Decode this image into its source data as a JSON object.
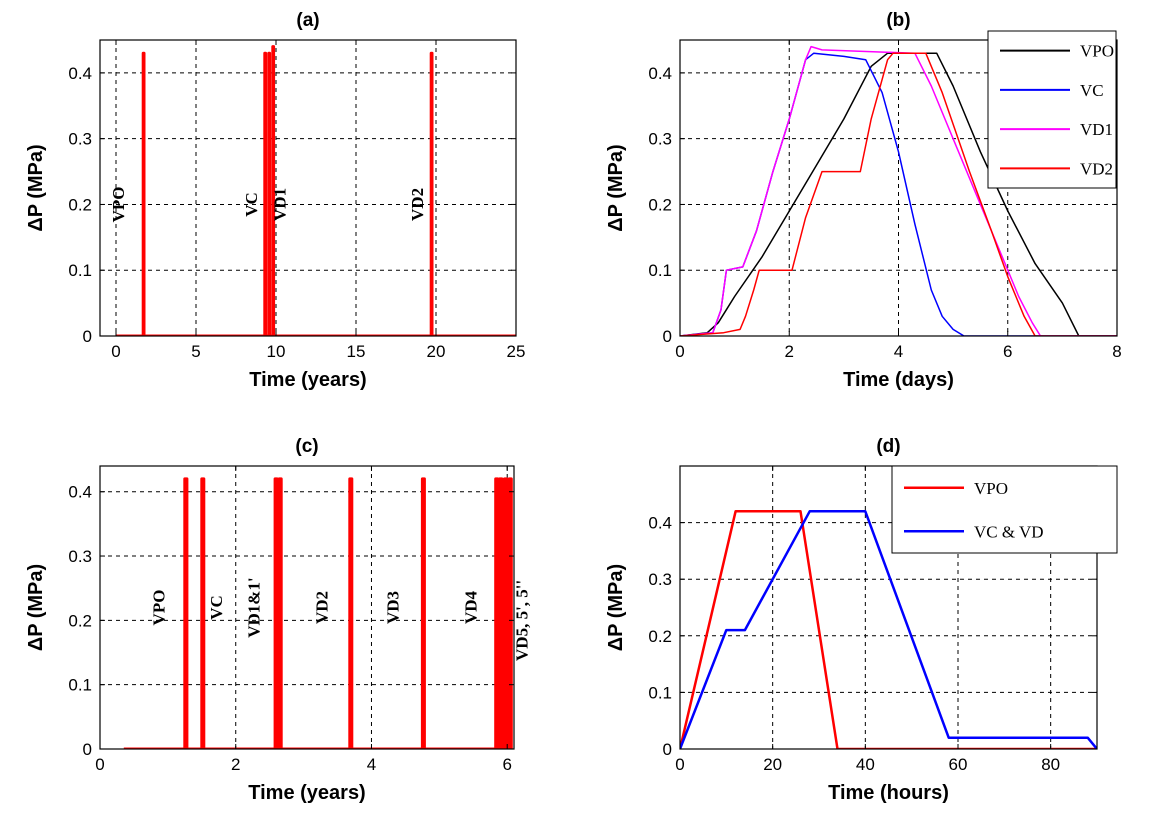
{
  "chart_data": [
    {
      "id": "a",
      "type": "line",
      "title": "(a)",
      "xlabel": "Time (years)",
      "ylabel": "ΔP (MPa)",
      "xlim": [
        -1,
        25
      ],
      "ylim": [
        0,
        0.45
      ],
      "xticks": [
        0,
        5,
        10,
        15,
        20,
        25
      ],
      "yticks": [
        0,
        0.1,
        0.2,
        0.3,
        0.4
      ],
      "grid": true,
      "series": [
        {
          "color": "#ff0000",
          "width": 3,
          "points": [
            [
              0,
              0
            ],
            [
              1.7,
              0
            ],
            [
              1.7,
              0.43
            ],
            [
              1.75,
              0.43
            ],
            [
              1.75,
              0
            ],
            [
              9.3,
              0
            ],
            [
              9.3,
              0.43
            ],
            [
              9.35,
              0.43
            ],
            [
              9.35,
              0
            ],
            [
              9.55,
              0
            ],
            [
              9.55,
              0.43
            ],
            [
              9.6,
              0.43
            ],
            [
              9.6,
              0
            ],
            [
              9.8,
              0
            ],
            [
              9.8,
              0.44
            ],
            [
              9.85,
              0.44
            ],
            [
              9.85,
              0
            ],
            [
              19.7,
              0
            ],
            [
              19.7,
              0.43
            ],
            [
              19.75,
              0.43
            ],
            [
              19.75,
              0
            ],
            [
              25,
              0
            ]
          ]
        }
      ],
      "annotations": [
        {
          "text": "VPO",
          "x": 0.5,
          "y": 0.2
        },
        {
          "text": "VC",
          "x": 8.8,
          "y": 0.2
        },
        {
          "text": "VD1",
          "x": 10.6,
          "y": 0.2
        },
        {
          "text": "VD2",
          "x": 19.2,
          "y": 0.2
        }
      ]
    },
    {
      "id": "b",
      "type": "line",
      "title": "(b)",
      "xlabel": "Time (days)",
      "ylabel": "ΔP (MPa)",
      "xlim": [
        0,
        8
      ],
      "ylim": [
        0,
        0.45
      ],
      "xticks": [
        0,
        2,
        4,
        6,
        8
      ],
      "yticks": [
        0,
        0.1,
        0.2,
        0.3,
        0.4
      ],
      "grid": true,
      "legend_position": "top-right",
      "series": [
        {
          "name": "VPO",
          "color": "#000000",
          "width": 1.5,
          "points": [
            [
              0,
              0
            ],
            [
              0.5,
              0.005
            ],
            [
              0.7,
              0.02
            ],
            [
              0.85,
              0.04
            ],
            [
              1,
              0.06
            ],
            [
              1.5,
              0.12
            ],
            [
              2,
              0.19
            ],
            [
              2.5,
              0.26
            ],
            [
              3,
              0.33
            ],
            [
              3.5,
              0.41
            ],
            [
              3.8,
              0.43
            ],
            [
              4.7,
              0.43
            ],
            [
              5,
              0.38
            ],
            [
              5.5,
              0.28
            ],
            [
              6,
              0.19
            ],
            [
              6.5,
              0.11
            ],
            [
              7,
              0.05
            ],
            [
              7.3,
              0
            ],
            [
              8,
              0
            ]
          ]
        },
        {
          "name": "VC",
          "color": "#0000ff",
          "width": 1.5,
          "points": [
            [
              0,
              0
            ],
            [
              0.6,
              0.005
            ],
            [
              0.75,
              0.04
            ],
            [
              0.85,
              0.1
            ],
            [
              1.15,
              0.105
            ],
            [
              1.4,
              0.16
            ],
            [
              1.7,
              0.25
            ],
            [
              2,
              0.33
            ],
            [
              2.3,
              0.42
            ],
            [
              2.45,
              0.43
            ],
            [
              3,
              0.425
            ],
            [
              3.4,
              0.42
            ],
            [
              3.7,
              0.37
            ],
            [
              4,
              0.28
            ],
            [
              4.3,
              0.17
            ],
            [
              4.6,
              0.07
            ],
            [
              4.8,
              0.03
            ],
            [
              5,
              0.01
            ],
            [
              5.2,
              0
            ],
            [
              8,
              0
            ]
          ]
        },
        {
          "name": "VD1",
          "color": "#ff00ff",
          "width": 1.5,
          "points": [
            [
              0,
              0
            ],
            [
              0.6,
              0.005
            ],
            [
              0.75,
              0.04
            ],
            [
              0.85,
              0.1
            ],
            [
              1.15,
              0.105
            ],
            [
              1.4,
              0.16
            ],
            [
              1.7,
              0.25
            ],
            [
              2,
              0.33
            ],
            [
              2.3,
              0.42
            ],
            [
              2.4,
              0.44
            ],
            [
              2.6,
              0.435
            ],
            [
              4.3,
              0.43
            ],
            [
              4.6,
              0.38
            ],
            [
              5,
              0.3
            ],
            [
              5.5,
              0.2
            ],
            [
              6,
              0.1
            ],
            [
              6.2,
              0.06
            ],
            [
              6.45,
              0.02
            ],
            [
              6.6,
              0
            ],
            [
              8,
              0
            ]
          ]
        },
        {
          "name": "VD2",
          "color": "#ff0000",
          "width": 1.5,
          "points": [
            [
              0,
              0
            ],
            [
              0.8,
              0.005
            ],
            [
              1.1,
              0.01
            ],
            [
              1.2,
              0.03
            ],
            [
              1.35,
              0.07
            ],
            [
              1.45,
              0.1
            ],
            [
              2.05,
              0.1
            ],
            [
              2.3,
              0.18
            ],
            [
              2.6,
              0.25
            ],
            [
              3.3,
              0.25
            ],
            [
              3.5,
              0.33
            ],
            [
              3.8,
              0.42
            ],
            [
              3.9,
              0.43
            ],
            [
              4.5,
              0.43
            ],
            [
              4.8,
              0.37
            ],
            [
              5.3,
              0.25
            ],
            [
              5.7,
              0.16
            ],
            [
              6,
              0.09
            ],
            [
              6.3,
              0.03
            ],
            [
              6.5,
              0
            ],
            [
              8,
              0
            ]
          ]
        }
      ]
    },
    {
      "id": "c",
      "type": "line",
      "title": "(c)",
      "xlabel": "Time (years)",
      "ylabel": "ΔP (MPa)",
      "xlim": [
        0,
        6.1
      ],
      "ylim": [
        0,
        0.44
      ],
      "xticks": [
        0,
        2,
        4,
        6
      ],
      "yticks": [
        0,
        0.1,
        0.2,
        0.3,
        0.4
      ],
      "grid": true,
      "series": [
        {
          "color": "#ff0000",
          "width": 3,
          "points": [
            [
              0.35,
              0
            ],
            [
              1.25,
              0
            ],
            [
              1.25,
              0.42
            ],
            [
              1.28,
              0.42
            ],
            [
              1.28,
              0
            ],
            [
              1.5,
              0
            ],
            [
              1.5,
              0.42
            ],
            [
              1.53,
              0.42
            ],
            [
              1.53,
              0
            ],
            [
              2.58,
              0
            ],
            [
              2.58,
              0.42
            ],
            [
              2.61,
              0.42
            ],
            [
              2.61,
              0
            ],
            [
              2.64,
              0
            ],
            [
              2.64,
              0.42
            ],
            [
              2.67,
              0.42
            ],
            [
              2.67,
              0
            ],
            [
              3.68,
              0
            ],
            [
              3.68,
              0.42
            ],
            [
              3.71,
              0.42
            ],
            [
              3.71,
              0
            ],
            [
              4.75,
              0
            ],
            [
              4.75,
              0.42
            ],
            [
              4.78,
              0.42
            ],
            [
              4.78,
              0
            ],
            [
              5.83,
              0
            ],
            [
              5.83,
              0.42
            ],
            [
              5.86,
              0.42
            ],
            [
              5.86,
              0
            ],
            [
              5.89,
              0
            ],
            [
              5.89,
              0.42
            ],
            [
              5.92,
              0.42
            ],
            [
              5.92,
              0
            ],
            [
              5.96,
              0
            ],
            [
              5.96,
              0.42
            ],
            [
              5.99,
              0.42
            ],
            [
              5.99,
              0
            ],
            [
              6.03,
              0
            ],
            [
              6.03,
              0.42
            ],
            [
              6.06,
              0.42
            ],
            [
              6.06,
              0
            ],
            [
              6.08,
              0
            ]
          ]
        }
      ],
      "annotations": [
        {
          "text": "VPO",
          "x": 0.95,
          "y": 0.22
        },
        {
          "text": "VC",
          "x": 1.8,
          "y": 0.22
        },
        {
          "text": "VD1&1'",
          "x": 2.35,
          "y": 0.22
        },
        {
          "text": "VD2",
          "x": 3.35,
          "y": 0.22
        },
        {
          "text": "VD3",
          "x": 4.4,
          "y": 0.22
        },
        {
          "text": "VD4",
          "x": 5.55,
          "y": 0.22
        },
        {
          "text": "VD5, 5', 5''",
          "x": 6.3,
          "y": 0.2
        }
      ]
    },
    {
      "id": "d",
      "type": "line",
      "title": "(d)",
      "xlabel": "Time (hours)",
      "ylabel": "ΔP (MPa)",
      "xlim": [
        0,
        90
      ],
      "ylim": [
        0,
        0.5
      ],
      "xticks": [
        0,
        20,
        40,
        60,
        80
      ],
      "yticks": [
        0,
        0.1,
        0.2,
        0.3,
        0.4
      ],
      "grid": true,
      "legend_position": "top-right",
      "series": [
        {
          "name": "VPO",
          "color": "#ff0000",
          "width": 2.5,
          "points": [
            [
              0,
              0
            ],
            [
              12,
              0.42
            ],
            [
              26,
              0.42
            ],
            [
              34,
              0
            ],
            [
              90,
              0
            ]
          ]
        },
        {
          "name": "VC & VD",
          "color": "#0000ff",
          "width": 2.5,
          "points": [
            [
              0,
              0
            ],
            [
              10,
              0.21
            ],
            [
              14,
              0.21
            ],
            [
              28,
              0.42
            ],
            [
              40,
              0.42
            ],
            [
              58,
              0.02
            ],
            [
              88,
              0.02
            ],
            [
              90,
              0
            ]
          ]
        }
      ]
    }
  ]
}
